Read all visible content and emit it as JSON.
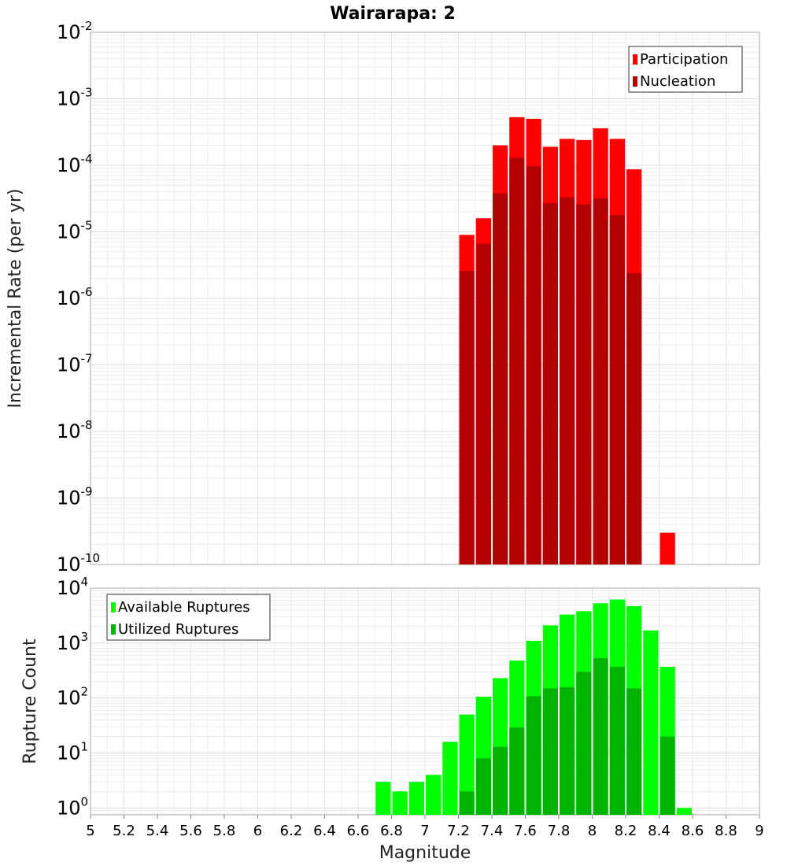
{
  "title": "Wairarapa: 2",
  "colors": {
    "participation": "#ff0000",
    "nucleation": "#b30000",
    "available": "#00ff00",
    "utilized": "#00b300"
  },
  "chart_data": [
    {
      "type": "bar",
      "title": "Wairarapa: 2",
      "ylabel": "Incremental Rate (per yr)",
      "xlabel": "Magnitude",
      "yscale": "log",
      "ylim": [
        1e-10,
        0.01
      ],
      "xlim": [
        5,
        9
      ],
      "yticks": [
        {
          "base": "10",
          "exp": "-10"
        },
        {
          "base": "10",
          "exp": "-9"
        },
        {
          "base": "10",
          "exp": "-8"
        },
        {
          "base": "10",
          "exp": "-7"
        },
        {
          "base": "10",
          "exp": "-6"
        },
        {
          "base": "10",
          "exp": "-5"
        },
        {
          "base": "10",
          "exp": "-4"
        },
        {
          "base": "10",
          "exp": "-3"
        },
        {
          "base": "10",
          "exp": "-2"
        }
      ],
      "legend": "top-right",
      "grid": true,
      "bin_width": 0.1,
      "series": [
        {
          "name": "Participation",
          "x": [
            7.25,
            7.35,
            7.45,
            7.55,
            7.65,
            7.75,
            7.85,
            7.95,
            8.05,
            8.15,
            8.25,
            8.45
          ],
          "values": [
            9e-06,
            1.6e-05,
            0.0002,
            0.00053,
            0.0005,
            0.00019,
            0.00025,
            0.00024,
            0.00036,
            0.00025,
            8.7e-05,
            3e-10
          ]
        },
        {
          "name": "Nucleation",
          "x": [
            7.25,
            7.35,
            7.45,
            7.55,
            7.65,
            7.75,
            7.85,
            7.95,
            8.05,
            8.15,
            8.25
          ],
          "values": [
            2.6e-06,
            6.6e-06,
            3.8e-05,
            0.00013,
            9.7e-05,
            2.7e-05,
            3.3e-05,
            2.6e-05,
            3.2e-05,
            1.8e-05,
            2.4e-06
          ]
        }
      ]
    },
    {
      "type": "bar",
      "ylabel": "Rupture Count",
      "xlabel": "Magnitude",
      "yscale": "log",
      "ylim": [
        0.75,
        10000
      ],
      "xlim": [
        5,
        9
      ],
      "yticks": [
        {
          "base": "10",
          "exp": "0",
          "value": 1
        },
        {
          "base": "10",
          "exp": "1",
          "value": 10
        },
        {
          "base": "10",
          "exp": "2",
          "value": 100
        },
        {
          "base": "10",
          "exp": "3",
          "value": 1000
        },
        {
          "base": "10",
          "exp": "4",
          "value": 10000
        }
      ],
      "xticks": [
        "5",
        "5.2",
        "5.4",
        "5.6",
        "5.8",
        "6",
        "6.2",
        "6.4",
        "6.6",
        "6.8",
        "7",
        "7.2",
        "7.4",
        "7.6",
        "7.8",
        "8",
        "8.2",
        "8.4",
        "8.6",
        "8.8",
        "9"
      ],
      "legend": "top-left",
      "grid": true,
      "bin_width": 0.1,
      "series": [
        {
          "name": "Available Ruptures",
          "x": [
            6.75,
            6.85,
            6.95,
            7.05,
            7.15,
            7.25,
            7.35,
            7.45,
            7.55,
            7.65,
            7.75,
            7.85,
            7.95,
            8.05,
            8.15,
            8.25,
            8.35,
            8.45,
            8.55
          ],
          "values": [
            3,
            2,
            3,
            4,
            16,
            50,
            106,
            230,
            480,
            1100,
            2100,
            3300,
            3800,
            5300,
            6200,
            4700,
            1700,
            370,
            1
          ]
        },
        {
          "name": "Utilized Ruptures",
          "x": [
            7.25,
            7.35,
            7.45,
            7.55,
            7.65,
            7.75,
            7.85,
            7.95,
            8.05,
            8.15,
            8.25,
            8.45
          ],
          "values": [
            2,
            8,
            13,
            29,
            108,
            150,
            158,
            300,
            530,
            370,
            150,
            20
          ]
        }
      ]
    }
  ]
}
